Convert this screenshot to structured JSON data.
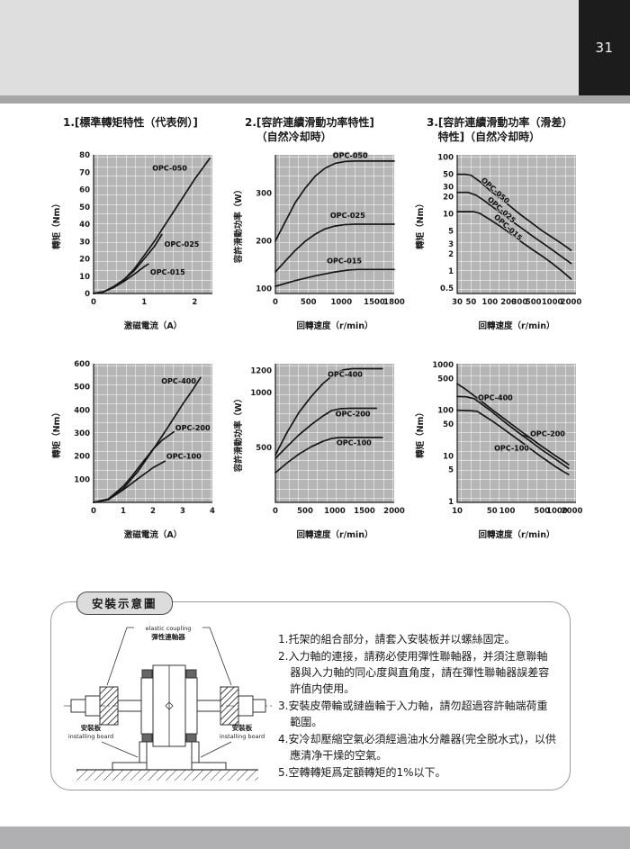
{
  "page": {
    "number": "31"
  },
  "colors": {
    "header_band": "#dedede",
    "header_strip": "#a6a6a8",
    "page_number_bg": "#1c1c1c",
    "footer_band": "#b0b0b2",
    "plot_background": "#b5b5b5",
    "grid_line": "#ffffff",
    "curve": "#161616"
  },
  "section_headers": [
    {
      "line1": "1.[標準轉矩特性（代表例）]",
      "line2": ""
    },
    {
      "line1": "2.[容許連續滑動功率特性]",
      "line2": "（自然冷却時）"
    },
    {
      "line1": "3.[容許連續滑動功率（滑差）",
      "line2": "特性]（自然冷却時）"
    }
  ],
  "chart_data": [
    {
      "type": "line",
      "xscale": "linear",
      "yscale": "linear",
      "xlabel": "激磁電流（A）",
      "ylabel": "轉矩（Nm）",
      "xlim": [
        0,
        2.35
      ],
      "ylim": [
        0,
        80
      ],
      "xticks": [
        0,
        1,
        2
      ],
      "yticks": [
        0,
        10,
        20,
        30,
        40,
        50,
        60,
        70,
        80
      ],
      "series": [
        {
          "name": "OPC-050",
          "points": [
            [
              0,
              0
            ],
            [
              0.2,
              1
            ],
            [
              0.4,
              4
            ],
            [
              0.6,
              8
            ],
            [
              0.8,
              14
            ],
            [
              1.0,
              22
            ],
            [
              1.2,
              30
            ],
            [
              1.4,
              39
            ],
            [
              1.6,
              48
            ],
            [
              1.8,
              57
            ],
            [
              2.0,
              66
            ],
            [
              2.15,
              72
            ],
            [
              2.3,
              78
            ]
          ],
          "label": {
            "x": 1.16,
            "y": 71,
            "rot": 0,
            "anchor": "start"
          }
        },
        {
          "name": "OPC-025",
          "points": [
            [
              0,
              0
            ],
            [
              0.2,
              1
            ],
            [
              0.4,
              4
            ],
            [
              0.6,
              8
            ],
            [
              0.8,
              13
            ],
            [
              1.0,
              20
            ],
            [
              1.2,
              27
            ],
            [
              1.35,
              34
            ]
          ],
          "label": {
            "x": 1.4,
            "y": 27,
            "rot": 0,
            "anchor": "start"
          }
        },
        {
          "name": "OPC-015",
          "points": [
            [
              0,
              0
            ],
            [
              0.2,
              1
            ],
            [
              0.4,
              3.5
            ],
            [
              0.6,
              7
            ],
            [
              0.8,
              11
            ],
            [
              1.0,
              15.5
            ],
            [
              1.08,
              17
            ]
          ],
          "label": {
            "x": 1.12,
            "y": 11,
            "rot": 0,
            "anchor": "start"
          }
        }
      ]
    },
    {
      "type": "line",
      "xscale": "linear",
      "yscale": "linear",
      "xlabel": "回轉速度（r/min）",
      "ylabel": "容許滑動功率（W）",
      "xlim": [
        0,
        1800
      ],
      "ylim": [
        90,
        380
      ],
      "xticks": [
        0,
        500,
        1000,
        1500,
        1800
      ],
      "yticks": [
        100,
        200,
        300
      ],
      "series": [
        {
          "name": "OPC-050",
          "points": [
            [
              0,
              200
            ],
            [
              150,
              240
            ],
            [
              300,
              280
            ],
            [
              450,
              310
            ],
            [
              600,
              335
            ],
            [
              750,
              352
            ],
            [
              900,
              362
            ],
            [
              1050,
              366
            ],
            [
              1200,
              367
            ],
            [
              1800,
              367
            ]
          ],
          "label": {
            "x": 870,
            "y": 373,
            "rot": 0,
            "anchor": "start"
          }
        },
        {
          "name": "OPC-025",
          "points": [
            [
              0,
              135
            ],
            [
              150,
              158
            ],
            [
              300,
              180
            ],
            [
              450,
              199
            ],
            [
              600,
              214
            ],
            [
              750,
              225
            ],
            [
              900,
              231
            ],
            [
              1050,
              234
            ],
            [
              1200,
              235
            ],
            [
              1800,
              235
            ]
          ],
          "label": {
            "x": 830,
            "y": 248,
            "rot": 0,
            "anchor": "start"
          }
        },
        {
          "name": "OPC-015",
          "points": [
            [
              0,
              105
            ],
            [
              300,
              117
            ],
            [
              600,
              127
            ],
            [
              900,
              135
            ],
            [
              1100,
              139
            ],
            [
              1250,
              140
            ],
            [
              1800,
              140
            ]
          ],
          "label": {
            "x": 780,
            "y": 153,
            "rot": 0,
            "anchor": "start"
          }
        }
      ]
    },
    {
      "type": "line",
      "xscale": "log",
      "yscale": "log",
      "xlabel": "回轉速度（r/min）",
      "ylabel": "轉矩（Nm）",
      "xlim": [
        30,
        2400
      ],
      "ylim": [
        0.4,
        110
      ],
      "xticks": [
        30,
        50,
        100,
        200,
        300,
        500,
        1000,
        2000
      ],
      "yticks": [
        0.5,
        1,
        2,
        3,
        5,
        10,
        20,
        30,
        50,
        100
      ],
      "series": [
        {
          "name": "OPC-050",
          "points": [
            [
              30,
              50
            ],
            [
              40,
              50
            ],
            [
              50,
              48
            ],
            [
              70,
              37
            ],
            [
              100,
              26
            ],
            [
              150,
              18.5
            ],
            [
              200,
              14.5
            ],
            [
              300,
              10
            ],
            [
              500,
              6.6
            ],
            [
              700,
              5
            ],
            [
              1000,
              3.9
            ],
            [
              1500,
              2.9
            ],
            [
              2000,
              2.3
            ]
          ],
          "label": {
            "x": 115,
            "y": 24,
            "rot": 42,
            "anchor": "middle"
          }
        },
        {
          "name": "OPC-025",
          "points": [
            [
              30,
              24
            ],
            [
              45,
              24
            ],
            [
              60,
              21.5
            ],
            [
              80,
              17.5
            ],
            [
              100,
              14.5
            ],
            [
              150,
              10.5
            ],
            [
              200,
              8.2
            ],
            [
              300,
              6
            ],
            [
              500,
              4
            ],
            [
              700,
              3.1
            ],
            [
              1000,
              2.35
            ],
            [
              1500,
              1.7
            ],
            [
              2000,
              1.35
            ]
          ],
          "label": {
            "x": 145,
            "y": 11,
            "rot": 42,
            "anchor": "middle"
          }
        },
        {
          "name": "OPC-015",
          "points": [
            [
              30,
              11
            ],
            [
              55,
              11
            ],
            [
              70,
              10.2
            ],
            [
              100,
              8
            ],
            [
              150,
              6
            ],
            [
              200,
              4.8
            ],
            [
              300,
              3.4
            ],
            [
              500,
              2.3
            ],
            [
              700,
              1.8
            ],
            [
              1000,
              1.35
            ],
            [
              1500,
              0.95
            ],
            [
              2000,
              0.72
            ]
          ],
          "label": {
            "x": 185,
            "y": 5.4,
            "rot": 42,
            "anchor": "middle"
          }
        }
      ]
    },
    {
      "type": "line",
      "xscale": "linear",
      "yscale": "linear",
      "xlabel": "激磁電流（A）",
      "ylabel": "轉矩（Nm）",
      "xlim": [
        0,
        4
      ],
      "ylim": [
        0,
        600
      ],
      "xticks": [
        0,
        1,
        2,
        3,
        4
      ],
      "yticks": [
        100,
        200,
        300,
        400,
        500,
        600
      ],
      "series": [
        {
          "name": "OPC-400",
          "points": [
            [
              0,
              0
            ],
            [
              0.5,
              12
            ],
            [
              1,
              60
            ],
            [
              1.5,
              135
            ],
            [
              2,
              228
            ],
            [
              2.5,
              325
            ],
            [
              3,
              425
            ],
            [
              3.3,
              480
            ],
            [
              3.6,
              540
            ]
          ],
          "label": {
            "x": 2.28,
            "y": 515,
            "rot": 0,
            "anchor": "start"
          }
        },
        {
          "name": "OPC-200",
          "points": [
            [
              0,
              0
            ],
            [
              0.5,
              15
            ],
            [
              1,
              70
            ],
            [
              1.3,
              115
            ],
            [
              1.6,
              165
            ],
            [
              2,
              230
            ],
            [
              2.3,
              268
            ],
            [
              2.7,
              305
            ]
          ],
          "label": {
            "x": 2.75,
            "y": 312,
            "rot": 0,
            "anchor": "start"
          }
        },
        {
          "name": "OPC-100",
          "points": [
            [
              0,
              0
            ],
            [
              0.5,
              12
            ],
            [
              1,
              55
            ],
            [
              1.5,
              103
            ],
            [
              2,
              150
            ],
            [
              2.4,
              178
            ]
          ],
          "label": {
            "x": 2.45,
            "y": 188,
            "rot": 0,
            "anchor": "start"
          }
        }
      ]
    },
    {
      "type": "line",
      "xscale": "linear",
      "yscale": "linear",
      "xlabel": "回轉速度（r/min）",
      "ylabel": "容許滑動功率（W）",
      "xlim": [
        0,
        2000
      ],
      "ylim": [
        0,
        1260
      ],
      "xticks": [
        0,
        500,
        1000,
        1500,
        2000
      ],
      "yticks": [
        500,
        1000,
        1200
      ],
      "series": [
        {
          "name": "OPC-400",
          "points": [
            [
              0,
              430
            ],
            [
              200,
              640
            ],
            [
              400,
              820
            ],
            [
              600,
              960
            ],
            [
              800,
              1080
            ],
            [
              1000,
              1170
            ],
            [
              1150,
              1205
            ],
            [
              1300,
              1215
            ],
            [
              1800,
              1215
            ]
          ],
          "label": {
            "x": 880,
            "y": 1140,
            "rot": 0,
            "anchor": "start"
          }
        },
        {
          "name": "OPC-200",
          "points": [
            [
              0,
              400
            ],
            [
              200,
              510
            ],
            [
              400,
              615
            ],
            [
              600,
              705
            ],
            [
              800,
              785
            ],
            [
              950,
              835
            ],
            [
              1100,
              852
            ],
            [
              1250,
              855
            ],
            [
              1700,
              855
            ]
          ],
          "label": {
            "x": 1010,
            "y": 780,
            "rot": 0,
            "anchor": "start"
          }
        },
        {
          "name": "OPC-100",
          "points": [
            [
              0,
              270
            ],
            [
              200,
              360
            ],
            [
              400,
              440
            ],
            [
              600,
              505
            ],
            [
              800,
              555
            ],
            [
              950,
              582
            ],
            [
              1100,
              590
            ],
            [
              1800,
              590
            ]
          ],
          "label": {
            "x": 1030,
            "y": 520,
            "rot": 0,
            "anchor": "start"
          }
        }
      ]
    },
    {
      "type": "line",
      "xscale": "log",
      "yscale": "log",
      "xlabel": "回轉速度（r/min）",
      "ylabel": "轉矩（Nm）",
      "xlim": [
        10,
        2400
      ],
      "ylim": [
        0.95,
        1050
      ],
      "xticks": [
        10,
        50,
        100,
        500,
        1000,
        2000
      ],
      "yticks": [
        1,
        5,
        10,
        50,
        100,
        500,
        1000
      ],
      "series": [
        {
          "name": "OPC-400",
          "points": [
            [
              10,
              380
            ],
            [
              14,
              300
            ],
            [
              20,
              225
            ],
            [
              30,
              160
            ],
            [
              50,
              103
            ],
            [
              70,
              78
            ],
            [
              100,
              58
            ],
            [
              200,
              33
            ],
            [
              300,
              24
            ],
            [
              500,
              16
            ],
            [
              700,
              12.5
            ],
            [
              1000,
              9.5
            ],
            [
              1400,
              7.5
            ],
            [
              1700,
              6.4
            ]
          ],
          "label": {
            "x": 26,
            "y": 165,
            "rot": 0,
            "anchor": "start"
          }
        },
        {
          "name": "OPC-200",
          "points": [
            [
              10,
              200
            ],
            [
              15,
              198
            ],
            [
              22,
              180
            ],
            [
              30,
              140
            ],
            [
              50,
              92
            ],
            [
              70,
              68
            ],
            [
              100,
              50
            ],
            [
              200,
              28
            ],
            [
              300,
              20.5
            ],
            [
              500,
              13.5
            ],
            [
              700,
              10.5
            ],
            [
              1000,
              8
            ],
            [
              1400,
              6.2
            ],
            [
              1700,
              5.3
            ]
          ],
          "label": {
            "x": 290,
            "y": 27,
            "rot": 0,
            "anchor": "start"
          },
          "leader": [
            [
              275,
              25
            ],
            [
              205,
              29
            ]
          ]
        },
        {
          "name": "OPC-100",
          "points": [
            [
              10,
              100
            ],
            [
              18,
              98
            ],
            [
              25,
              95
            ],
            [
              35,
              75
            ],
            [
              50,
              58
            ],
            [
              70,
              45
            ],
            [
              100,
              34
            ],
            [
              200,
              19.5
            ],
            [
              300,
              14
            ],
            [
              500,
              9.3
            ],
            [
              700,
              7.2
            ],
            [
              1000,
              5.5
            ],
            [
              1400,
              4.4
            ],
            [
              1700,
              3.9
            ]
          ],
          "label": {
            "x": 55,
            "y": 13,
            "rot": 0,
            "anchor": "start"
          }
        }
      ]
    }
  ],
  "installation": {
    "title": "安裝示意圖",
    "diagram": {
      "coupling_label_en": "elastic coupling",
      "coupling_label_zh": "彈性連軸器",
      "board_label_zh": "安裝板",
      "board_label_en": "installing board"
    },
    "notes": [
      "1.托架的組合部分，請套入安裝板并以螺絲固定。",
      "2.入力軸的連接，請務必使用彈性聯軸器，并須注意聯軸器與入力軸的同心度與直角度，請在彈性聯軸器誤差容許值内使用。",
      "3.安裝皮帶輪或鏈齒輪于入力軸，請勿超過容許軸端荷重範圍。",
      "4.安冷却壓縮空氣必須經過油水分離器(完全脱水式)，以供應清净干燥的空氣。",
      "5.空轉轉矩爲定額轉矩的1%以下。"
    ]
  }
}
